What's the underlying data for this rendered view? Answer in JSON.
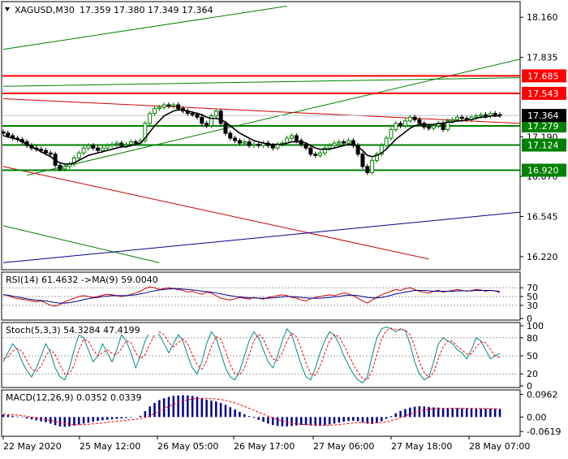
{
  "window": {
    "title_symbol": "XAGUSD,M30",
    "ohlc": "17.359 17.380 17.349 17.364",
    "menu_icon": "triangle-down-icon"
  },
  "colors": {
    "bull": "#008000",
    "bear": "#000000",
    "support": "#008000",
    "resistance": "#ff0000",
    "channel_green": "#008000",
    "channel_red": "#cc0000",
    "channel_blue": "#00008b",
    "ma": "#000000",
    "rsi": "#cc0000",
    "rsi_ma": "#00008b",
    "stoch_main": "#008b8b",
    "stoch_signal": "#ff0000",
    "macd_hist": "#00008b",
    "macd_signal": "#ff0000",
    "price_tag_current": "#000000"
  },
  "chart_data": [
    {
      "type": "candlestick",
      "name": "main",
      "title": "XAGUSD,M30",
      "ylim": [
        16.12,
        18.28
      ],
      "y_ticks": [
        "18.160",
        "17.835",
        "17.190",
        "16.870",
        "16.545",
        "16.220"
      ],
      "x_ticks": [
        "22 May 2020",
        "25 May 12:00",
        "26 May 05:00",
        "26 May 17:00",
        "27 May 06:00",
        "27 May 18:00",
        "28 May 07:00"
      ],
      "current_price": "17.364",
      "levels": [
        {
          "label": "17.685",
          "value": 17.685,
          "kind": "resistance"
        },
        {
          "label": "17.543",
          "value": 17.543,
          "kind": "resistance"
        },
        {
          "label": "17.279",
          "value": 17.279,
          "kind": "support"
        },
        {
          "label": "17.124",
          "value": 17.124,
          "kind": "support"
        },
        {
          "label": "16.920",
          "value": 16.92,
          "kind": "support"
        }
      ],
      "close": [
        17.22,
        17.2,
        17.18,
        17.17,
        17.15,
        17.12,
        17.1,
        17.09,
        17.08,
        17.06,
        17.05,
        16.96,
        16.93,
        16.95,
        16.97,
        17.02,
        17.06,
        17.1,
        17.12,
        17.1,
        17.08,
        17.1,
        17.12,
        17.13,
        17.14,
        17.12,
        17.13,
        17.15,
        17.14,
        17.16,
        17.3,
        17.38,
        17.42,
        17.43,
        17.45,
        17.44,
        17.45,
        17.42,
        17.4,
        17.38,
        17.37,
        17.35,
        17.3,
        17.28,
        17.36,
        17.4,
        17.3,
        17.22,
        17.18,
        17.16,
        17.14,
        17.15,
        17.12,
        17.13,
        17.12,
        17.14,
        17.12,
        17.1,
        17.13,
        17.14,
        17.18,
        17.2,
        17.16,
        17.13,
        17.1,
        17.05,
        17.04,
        17.06,
        17.1,
        17.12,
        17.14,
        17.15,
        17.14,
        17.16,
        17.12,
        17.05,
        16.95,
        16.9,
        17.0,
        17.05,
        17.12,
        17.18,
        17.25,
        17.3,
        17.28,
        17.32,
        17.35,
        17.33,
        17.3,
        17.27,
        17.26,
        17.28,
        17.3,
        17.25,
        17.32,
        17.33,
        17.35,
        17.34,
        17.33,
        17.35,
        17.36,
        17.37,
        17.36,
        17.38,
        17.37,
        17.364
      ],
      "ma_values": [
        17.2,
        17.19,
        17.18,
        17.17,
        17.15,
        17.13,
        17.11,
        17.09,
        17.07,
        17.05,
        17.03,
        17.0,
        16.98,
        16.97,
        16.97,
        16.98,
        17.0,
        17.02,
        17.04,
        17.05,
        17.06,
        17.07,
        17.08,
        17.09,
        17.1,
        17.11,
        17.11,
        17.12,
        17.13,
        17.14,
        17.18,
        17.23,
        17.28,
        17.32,
        17.36,
        17.38,
        17.4,
        17.41,
        17.41,
        17.4,
        17.39,
        17.38,
        17.37,
        17.35,
        17.34,
        17.34,
        17.33,
        17.31,
        17.28,
        17.25,
        17.22,
        17.2,
        17.18,
        17.16,
        17.15,
        17.14,
        17.13,
        17.13,
        17.13,
        17.13,
        17.14,
        17.15,
        17.15,
        17.15,
        17.14,
        17.12,
        17.1,
        17.09,
        17.09,
        17.09,
        17.1,
        17.11,
        17.12,
        17.13,
        17.13,
        17.11,
        17.08,
        17.04,
        17.03,
        17.04,
        17.06,
        17.09,
        17.13,
        17.17,
        17.2,
        17.23,
        17.26,
        17.28,
        17.29,
        17.29,
        17.29,
        17.29,
        17.3,
        17.3,
        17.31,
        17.31,
        17.32,
        17.32,
        17.33,
        17.33,
        17.34,
        17.35,
        17.35,
        17.36,
        17.36,
        17.36
      ],
      "trend_lines": [
        {
          "color": "channel_green",
          "from": [
            0,
            17.9
          ],
          "to": [
            60,
            18.25
          ]
        },
        {
          "color": "channel_green",
          "from": [
            5,
            16.88
          ],
          "to": [
            110,
            17.82
          ]
        },
        {
          "color": "channel_green",
          "from": [
            0,
            17.6
          ],
          "to": [
            110,
            17.67
          ]
        },
        {
          "color": "channel_green",
          "from": [
            0,
            16.47
          ],
          "to": [
            33,
            16.17
          ]
        },
        {
          "color": "channel_red",
          "from": [
            0,
            17.5
          ],
          "to": [
            110,
            17.3
          ]
        },
        {
          "color": "channel_red",
          "from": [
            0,
            16.95
          ],
          "to": [
            90,
            16.2
          ]
        },
        {
          "color": "channel_blue",
          "from": [
            0,
            16.17
          ],
          "to": [
            110,
            16.58
          ]
        }
      ]
    },
    {
      "type": "line",
      "name": "rsi",
      "title": "RSI(14) 61.4632  ->MA(9) 59.0040",
      "ylim": [
        0,
        100
      ],
      "y_ticks": [
        "70",
        "50",
        "30",
        "0"
      ],
      "levels": [
        70,
        50,
        30
      ],
      "series": [
        {
          "name": "RSI(14)",
          "values": [
            55,
            52,
            48,
            45,
            44,
            42,
            40,
            38,
            40,
            35,
            30,
            28,
            32,
            38,
            42,
            46,
            50,
            52,
            50,
            48,
            50,
            53,
            55,
            54,
            52,
            50,
            52,
            55,
            58,
            62,
            68,
            72,
            70,
            66,
            68,
            70,
            68,
            66,
            64,
            60,
            62,
            58,
            55,
            60,
            58,
            52,
            46,
            44,
            42,
            45,
            48,
            46,
            44,
            48,
            46,
            44,
            48,
            50,
            52,
            54,
            52,
            48,
            46,
            42,
            40,
            45,
            48,
            50,
            52,
            54,
            52,
            55,
            58,
            56,
            52,
            46,
            40,
            35,
            42,
            48,
            54,
            58,
            62,
            66,
            64,
            68,
            70,
            66,
            62,
            60,
            58,
            62,
            64,
            60,
            62,
            64,
            66,
            64,
            62,
            64,
            66,
            65,
            62,
            64,
            63,
            61.5
          ]
        },
        {
          "name": "MA(9)",
          "values": [
            54,
            53,
            51,
            49,
            47,
            45,
            43,
            42,
            41,
            40,
            38,
            36,
            35,
            35,
            36,
            38,
            40,
            43,
            45,
            47,
            48,
            50,
            51,
            52,
            52,
            52,
            52,
            53,
            54,
            56,
            58,
            61,
            63,
            65,
            66,
            67,
            68,
            68,
            67,
            66,
            65,
            64,
            62,
            61,
            60,
            58,
            56,
            54,
            52,
            50,
            49,
            48,
            47,
            47,
            46,
            46,
            46,
            47,
            48,
            49,
            50,
            50,
            49,
            48,
            47,
            46,
            46,
            46,
            47,
            48,
            49,
            50,
            52,
            53,
            53,
            52,
            50,
            48,
            47,
            47,
            48,
            50,
            53,
            56,
            58,
            60,
            62,
            64,
            64,
            64,
            63,
            62,
            62,
            62,
            62,
            62,
            63,
            63,
            63,
            63,
            64,
            64,
            64,
            64,
            63,
            59
          ]
        }
      ]
    },
    {
      "type": "line",
      "name": "stochastic",
      "title": "Stoch(5,3,3) 54.3284 47.4199",
      "ylim": [
        0,
        100
      ],
      "y_ticks": [
        "100",
        "80",
        "50",
        "20",
        "0"
      ],
      "levels": [
        80,
        50,
        20
      ],
      "series": [
        {
          "name": "main",
          "values": [
            40,
            55,
            70,
            60,
            40,
            25,
            15,
            30,
            50,
            70,
            55,
            30,
            15,
            10,
            30,
            60,
            85,
            80,
            60,
            40,
            50,
            70,
            55,
            40,
            60,
            85,
            75,
            55,
            30,
            50,
            75,
            90,
            92,
            85,
            70,
            55,
            70,
            85,
            75,
            50,
            30,
            20,
            40,
            70,
            90,
            80,
            55,
            30,
            15,
            10,
            25,
            50,
            75,
            90,
            80,
            60,
            40,
            30,
            50,
            75,
            95,
            85,
            60,
            35,
            15,
            10,
            30,
            55,
            75,
            90,
            85,
            70,
            50,
            35,
            20,
            10,
            5,
            15,
            50,
            80,
            95,
            98,
            95,
            90,
            95,
            92,
            70,
            40,
            20,
            10,
            15,
            40,
            70,
            80,
            75,
            70,
            60,
            55,
            45,
            60,
            80,
            75,
            60,
            45,
            50,
            54
          ]
        },
        {
          "name": "signal",
          "values": [
            45,
            48,
            58,
            62,
            57,
            42,
            28,
            24,
            33,
            50,
            60,
            52,
            34,
            20,
            20,
            35,
            60,
            77,
            75,
            60,
            50,
            55,
            60,
            54,
            52,
            62,
            75,
            72,
            55,
            45,
            52,
            70,
            85,
            90,
            85,
            72,
            65,
            72,
            78,
            70,
            52,
            35,
            28,
            42,
            65,
            82,
            78,
            58,
            35,
            20,
            18,
            30,
            52,
            75,
            86,
            78,
            60,
            45,
            42,
            55,
            75,
            88,
            82,
            62,
            38,
            20,
            18,
            33,
            55,
            75,
            85,
            82,
            68,
            52,
            36,
            22,
            12,
            10,
            25,
            52,
            78,
            92,
            96,
            94,
            93,
            93,
            85,
            65,
            40,
            22,
            14,
            22,
            45,
            65,
            75,
            74,
            66,
            60,
            53,
            53,
            65,
            73,
            72,
            60,
            50,
            47
          ]
        }
      ]
    },
    {
      "type": "bar",
      "name": "macd",
      "title": "MACD(12,26,9) 0.0352 0.0339",
      "ylim": [
        -0.075,
        0.105
      ],
      "y_ticks": [
        "0.0962",
        "0.00",
        "-0.0619"
      ],
      "series": [
        {
          "name": "MACD(12,26,9)",
          "values": [
            0.01,
            0.008,
            0.005,
            0.002,
            -0.002,
            -0.006,
            -0.01,
            -0.014,
            -0.018,
            -0.022,
            -0.028,
            -0.035,
            -0.04,
            -0.042,
            -0.04,
            -0.036,
            -0.032,
            -0.028,
            -0.024,
            -0.02,
            -0.017,
            -0.014,
            -0.012,
            -0.01,
            -0.008,
            -0.006,
            -0.004,
            -0.002,
            0.0,
            0.005,
            0.025,
            0.045,
            0.06,
            0.072,
            0.08,
            0.086,
            0.09,
            0.092,
            0.093,
            0.092,
            0.09,
            0.086,
            0.08,
            0.074,
            0.07,
            0.066,
            0.06,
            0.052,
            0.042,
            0.032,
            0.022,
            0.012,
            0.004,
            -0.004,
            -0.012,
            -0.02,
            -0.028,
            -0.034,
            -0.038,
            -0.04,
            -0.04,
            -0.038,
            -0.036,
            -0.034,
            -0.034,
            -0.036,
            -0.038,
            -0.038,
            -0.036,
            -0.032,
            -0.028,
            -0.024,
            -0.02,
            -0.017,
            -0.016,
            -0.018,
            -0.022,
            -0.028,
            -0.03,
            -0.026,
            -0.018,
            -0.008,
            0.004,
            0.016,
            0.026,
            0.034,
            0.04,
            0.044,
            0.046,
            0.045,
            0.043,
            0.041,
            0.04,
            0.038,
            0.038,
            0.038,
            0.038,
            0.037,
            0.037,
            0.037,
            0.036,
            0.036,
            0.036,
            0.036,
            0.036,
            0.0352
          ]
        },
        {
          "name": "signal",
          "values": [
            0.012,
            0.011,
            0.01,
            0.008,
            0.006,
            0.003,
            0.0,
            -0.003,
            -0.007,
            -0.011,
            -0.015,
            -0.019,
            -0.024,
            -0.028,
            -0.031,
            -0.033,
            -0.033,
            -0.032,
            -0.031,
            -0.029,
            -0.027,
            -0.025,
            -0.022,
            -0.02,
            -0.018,
            -0.016,
            -0.014,
            -0.012,
            -0.01,
            -0.007,
            -0.002,
            0.006,
            0.016,
            0.026,
            0.036,
            0.046,
            0.054,
            0.062,
            0.068,
            0.073,
            0.077,
            0.079,
            0.08,
            0.08,
            0.079,
            0.077,
            0.075,
            0.071,
            0.066,
            0.06,
            0.053,
            0.045,
            0.037,
            0.029,
            0.02,
            0.012,
            0.004,
            -0.004,
            -0.011,
            -0.017,
            -0.022,
            -0.026,
            -0.029,
            -0.031,
            -0.032,
            -0.033,
            -0.034,
            -0.035,
            -0.035,
            -0.035,
            -0.034,
            -0.032,
            -0.03,
            -0.028,
            -0.025,
            -0.024,
            -0.023,
            -0.024,
            -0.025,
            -0.025,
            -0.024,
            -0.021,
            -0.016,
            -0.01,
            -0.003,
            0.005,
            0.013,
            0.019,
            0.025,
            0.029,
            0.033,
            0.035,
            0.036,
            0.037,
            0.037,
            0.037,
            0.037,
            0.037,
            0.037,
            0.037,
            0.036,
            0.036,
            0.036,
            0.036,
            0.035,
            0.0339
          ]
        }
      ]
    }
  ]
}
